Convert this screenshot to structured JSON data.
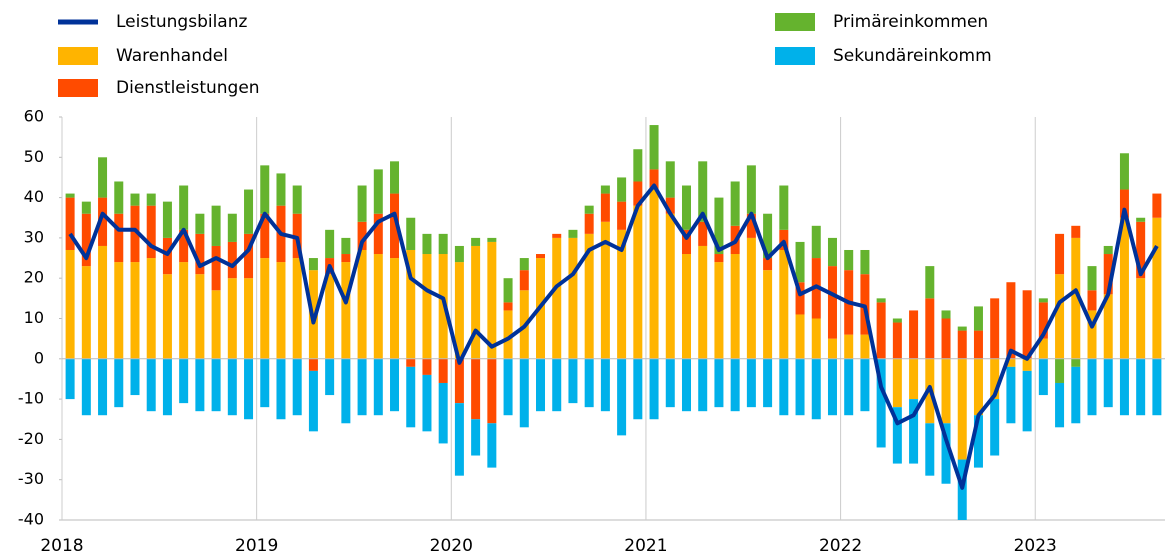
{
  "chart_data": {
    "type": "stacked-bar-line",
    "categories": [
      "2018",
      null,
      null,
      null,
      null,
      null,
      null,
      null,
      null,
      null,
      null,
      null,
      "2019",
      null,
      null,
      null,
      null,
      null,
      null,
      null,
      null,
      null,
      null,
      null,
      "2020",
      null,
      null,
      null,
      null,
      null,
      null,
      null,
      null,
      null,
      null,
      null,
      "2021",
      null,
      null,
      null,
      null,
      null,
      null,
      null,
      null,
      null,
      null,
      null,
      "2022",
      null,
      null,
      null,
      null,
      null,
      null,
      null,
      null,
      null,
      null,
      null,
      "2023",
      null,
      null,
      null,
      null,
      null,
      null,
      null
    ],
    "ylim": [
      -40,
      60
    ],
    "yticks": [
      -40,
      -30,
      -20,
      -10,
      0,
      10,
      20,
      30,
      40,
      50,
      60
    ],
    "series": [
      {
        "name": "Warenhandel",
        "color": "#ffb400",
        "values": [
          27,
          23,
          28,
          24,
          24,
          25,
          21,
          24,
          21,
          17,
          20,
          20,
          25,
          24,
          25,
          22,
          21,
          24,
          27,
          26,
          25,
          27,
          26,
          26,
          24,
          28,
          29,
          12,
          17,
          25,
          30,
          30,
          31,
          34,
          32,
          38,
          42,
          36,
          26,
          28,
          24,
          26,
          30,
          22,
          27,
          11,
          10,
          5,
          6,
          6,
          0,
          -12,
          -10,
          -16,
          -16,
          -25,
          -14,
          -10,
          -2,
          -3,
          5,
          21,
          30,
          12,
          16,
          35,
          20,
          35
        ]
      },
      {
        "name": "Dienstleistungen",
        "color": "#ff4b00",
        "values": [
          13,
          13,
          12,
          12,
          14,
          13,
          9,
          8,
          10,
          11,
          9,
          11,
          11,
          14,
          11,
          -3,
          4,
          2,
          7,
          10,
          16,
          -2,
          -4,
          -6,
          -11,
          -15,
          -16,
          2,
          5,
          1,
          1,
          0,
          5,
          7,
          7,
          6,
          5,
          4,
          6,
          6,
          2,
          7,
          6,
          3,
          5,
          8,
          15,
          18,
          16,
          15,
          14,
          9,
          12,
          15,
          10,
          7,
          7,
          15,
          19,
          17,
          9,
          10,
          3,
          5,
          10,
          7,
          14,
          6
        ]
      },
      {
        "name": "Primäreinkommen",
        "color": "#65b32e",
        "values": [
          1,
          3,
          10,
          8,
          3,
          3,
          9,
          11,
          5,
          10,
          7,
          11,
          12,
          8,
          7,
          3,
          7,
          4,
          9,
          11,
          8,
          8,
          5,
          5,
          4,
          2,
          1,
          6,
          3,
          0,
          0,
          2,
          2,
          2,
          6,
          8,
          11,
          9,
          11,
          15,
          14,
          11,
          12,
          11,
          11,
          10,
          8,
          7,
          5,
          6,
          1,
          1,
          0,
          8,
          2,
          1,
          6,
          0,
          0,
          0,
          1,
          -6,
          -2,
          6,
          2,
          9,
          1,
          0
        ]
      },
      {
        "name": "Sekundäreinkomm",
        "color": "#00b1ea",
        "values": [
          -10,
          -14,
          -14,
          -12,
          -9,
          -13,
          -14,
          -11,
          -13,
          -13,
          -14,
          -15,
          -12,
          -15,
          -14,
          -15,
          -9,
          -16,
          -14,
          -14,
          -13,
          -15,
          -14,
          -15,
          -18,
          -9,
          -11,
          -14,
          -17,
          -13,
          -13,
          -11,
          -12,
          -13,
          -19,
          -15,
          -15,
          -12,
          -13,
          -13,
          -12,
          -13,
          -12,
          -12,
          -14,
          -14,
          -15,
          -14,
          -14,
          -13,
          -22,
          -14,
          -16,
          -13,
          -15,
          -15,
          -13,
          -14,
          -14,
          -15,
          -9,
          -11,
          -14,
          -14,
          -12,
          -14,
          -14,
          -14
        ]
      }
    ],
    "line": {
      "name": "Leistungsbilanz",
      "color": "#003299",
      "values": [
        31,
        25,
        36,
        32,
        32,
        28,
        26,
        32,
        23,
        25,
        23,
        27,
        36,
        31,
        30,
        9,
        23,
        14,
        29,
        34,
        36,
        20,
        17,
        15,
        -1,
        7,
        3,
        5,
        8,
        13,
        18,
        21,
        27,
        29,
        27,
        38,
        43,
        36,
        30,
        36,
        27,
        29,
        36,
        25,
        29,
        16,
        18,
        16,
        14,
        13,
        -7,
        -16,
        -14,
        -7,
        -20,
        -32,
        -14,
        -9,
        2,
        0,
        6,
        14,
        17,
        8,
        16,
        37,
        21,
        28
      ]
    }
  }
}
